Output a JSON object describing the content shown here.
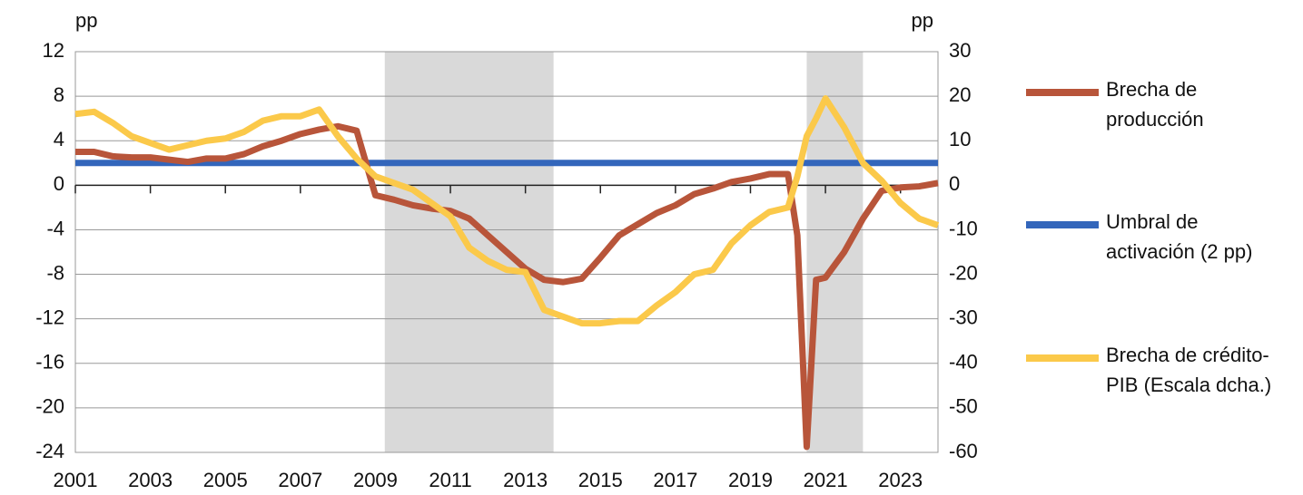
{
  "chart_data": {
    "type": "line",
    "y_unit": "pp",
    "y2_unit": "pp",
    "x": [
      2001,
      2001.5,
      2002,
      2002.5,
      2003,
      2003.5,
      2004,
      2004.5,
      2005,
      2005.5,
      2006,
      2006.5,
      2007,
      2007.5,
      2008,
      2008.5,
      2009,
      2009.5,
      2010,
      2010.5,
      2011,
      2011.5,
      2012,
      2012.5,
      2013,
      2013.5,
      2014,
      2014.5,
      2015,
      2015.5,
      2016,
      2016.5,
      2017,
      2017.5,
      2018,
      2018.5,
      2019,
      2019.5,
      2020,
      2020.25,
      2020.5,
      2020.75,
      2021,
      2021.5,
      2022,
      2022.5,
      2023,
      2023.5,
      2024
    ],
    "series": [
      {
        "name": "Brecha de producción",
        "color": "#b8553a",
        "axis": "y",
        "values": [
          3.0,
          3.0,
          2.6,
          2.5,
          2.5,
          2.3,
          2.1,
          2.4,
          2.4,
          2.8,
          3.5,
          4.0,
          4.6,
          5.0,
          5.3,
          4.9,
          -0.9,
          -1.3,
          -1.8,
          -2.1,
          -2.3,
          -3.0,
          -4.5,
          -6.0,
          -7.5,
          -8.5,
          -8.7,
          -8.4,
          -6.5,
          -4.5,
          -3.5,
          -2.5,
          -1.8,
          -0.8,
          -0.3,
          0.3,
          0.6,
          1.0,
          1.0,
          -4.5,
          -23.5,
          -8.5,
          -8.3,
          -6.0,
          -3.0,
          -0.5,
          -0.2,
          -0.1,
          0.2
        ]
      },
      {
        "name": "Umbral de activación (2 pp)",
        "color": "#3366bb",
        "axis": "y",
        "values": [
          2,
          2,
          2,
          2,
          2,
          2,
          2,
          2,
          2,
          2,
          2,
          2,
          2,
          2,
          2,
          2,
          2,
          2,
          2,
          2,
          2,
          2,
          2,
          2,
          2,
          2,
          2,
          2,
          2,
          2,
          2,
          2,
          2,
          2,
          2,
          2,
          2,
          2,
          2,
          2,
          2,
          2,
          2,
          2,
          2,
          2,
          2,
          2,
          2
        ]
      },
      {
        "name": "Brecha de crédito-PIB (Escala dcha.)",
        "color": "#fbc94a",
        "axis": "y2",
        "values": [
          16,
          16.5,
          14,
          11,
          9.5,
          8,
          9,
          10,
          10.5,
          12,
          14.5,
          15.5,
          15.5,
          17,
          11,
          6,
          2,
          0.5,
          -1,
          -4,
          -7,
          -14,
          -17,
          -19,
          -19.5,
          -28,
          -29.5,
          -31,
          -31,
          -30.5,
          -30.5,
          -27,
          -24,
          -20,
          -19,
          -13,
          -9,
          -6,
          -5,
          2,
          11,
          15,
          19.5,
          13,
          5,
          1,
          -4,
          -7.5,
          -9
        ]
      }
    ],
    "shaded_periods": [
      [
        2009.25,
        2013.75
      ],
      [
        2020.5,
        2022
      ]
    ],
    "shade_color": "#d9d9d9",
    "xlim": [
      2001,
      2024
    ],
    "xticks": [
      2001,
      2003,
      2005,
      2007,
      2009,
      2011,
      2013,
      2015,
      2017,
      2019,
      2021,
      2023
    ],
    "ylim": [
      -24,
      12
    ],
    "yticks": [
      -24,
      -20,
      -16,
      -12,
      -8,
      -4,
      0,
      4,
      8,
      12
    ],
    "y2lim": [
      -60,
      30
    ],
    "y2ticks": [
      -60,
      -50,
      -40,
      -30,
      -20,
      -10,
      0,
      10,
      20,
      30
    ],
    "grid": true
  }
}
